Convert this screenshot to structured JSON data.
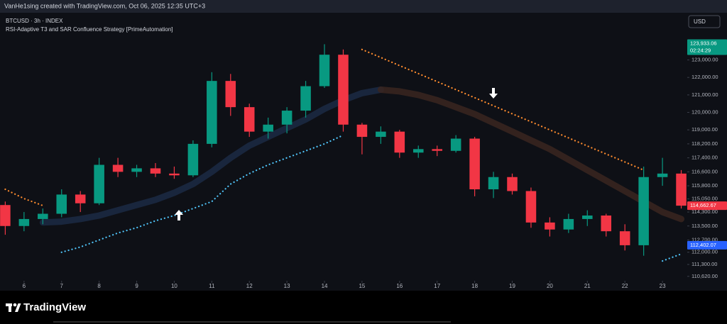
{
  "header": {
    "caption": "VanHe1sing created with TradingView.com, Oct 06, 2025 12:35 UTC+3",
    "currency": "USD"
  },
  "footer": {
    "brand": "TradingView"
  },
  "chart_data": {
    "type": "candlestick",
    "title": "BTCUSD · 3h · INDEX",
    "subtitle": "RSI-Adaptive T3 and SAR Confluence Strategy [PrimeAutomation]",
    "up_color": "#089981",
    "down_color": "#f23645",
    "x": [
      5.5,
      6,
      6.5,
      7,
      7.5,
      8,
      8.5,
      9,
      9.5,
      10,
      10.5,
      11,
      11.5,
      12,
      12.5,
      13,
      13.5,
      14,
      14.5,
      15,
      15.5,
      16,
      16.5,
      17,
      17.5,
      18,
      18.5,
      19,
      19.5,
      20,
      20.5,
      21,
      21.5,
      22,
      22.5,
      23,
      23.5
    ],
    "open": [
      114700,
      113500,
      113900,
      114200,
      115300,
      114800,
      117000,
      116600,
      116800,
      116500,
      116400,
      118200,
      121800,
      120300,
      118900,
      119300,
      120100,
      121500,
      123300,
      119300,
      118600,
      118900,
      117700,
      117900,
      117800,
      118500,
      115600,
      116300,
      115500,
      113700,
      113300,
      113900,
      114100,
      113200,
      112400,
      116300,
      116500
    ],
    "high": [
      114900,
      114300,
      114500,
      115600,
      115500,
      117400,
      117400,
      117000,
      117100,
      116900,
      118400,
      122300,
      122200,
      120500,
      119700,
      120300,
      121800,
      123900,
      123600,
      119400,
      119200,
      119000,
      118100,
      118100,
      118700,
      118600,
      116600,
      116500,
      115700,
      114000,
      114200,
      114400,
      114200,
      113600,
      116900,
      117400,
      116700
    ],
    "low": [
      113000,
      113200,
      113600,
      114000,
      114300,
      114700,
      116300,
      116300,
      116300,
      116200,
      116300,
      118000,
      119800,
      118600,
      118500,
      118800,
      119700,
      121400,
      118900,
      117600,
      118200,
      117400,
      117400,
      117500,
      117700,
      115200,
      115100,
      115300,
      113400,
      112900,
      113100,
      113500,
      112900,
      112100,
      111800,
      115800,
      114500
    ],
    "close": [
      113500,
      113900,
      114200,
      115300,
      114800,
      117000,
      116600,
      116800,
      116500,
      116400,
      118200,
      121800,
      120300,
      118900,
      119300,
      120100,
      121500,
      123300,
      119300,
      118600,
      118900,
      117700,
      117900,
      117800,
      118500,
      115600,
      116300,
      115500,
      113700,
      113300,
      113900,
      114100,
      113200,
      112400,
      116300,
      116500,
      114663
    ],
    "overlays": [
      {
        "style": "band",
        "color": "#1b2a44",
        "values": [
          null,
          null,
          113700,
          113750,
          113900,
          114100,
          114400,
          114700,
          115000,
          115400,
          115900,
          116600,
          117400,
          118100,
          118600,
          119100,
          119600,
          120200,
          120700,
          121100,
          121300,
          null,
          null,
          null,
          null,
          null,
          null,
          null,
          null,
          null,
          null,
          null,
          null,
          null,
          null,
          null,
          null
        ]
      },
      {
        "style": "band",
        "color": "#3a2620",
        "values": [
          null,
          null,
          null,
          null,
          null,
          null,
          null,
          null,
          null,
          null,
          null,
          null,
          null,
          null,
          null,
          null,
          null,
          null,
          null,
          null,
          121300,
          121200,
          121000,
          120700,
          120300,
          119900,
          119400,
          118900,
          118400,
          117900,
          117300,
          116700,
          116100,
          115500,
          114900,
          114300,
          113900
        ]
      },
      {
        "style": "dotted",
        "color": "#ff8c2e",
        "values": [
          115600,
          115070,
          114670,
          null,
          null,
          null,
          null,
          null,
          null,
          null,
          null,
          null,
          null,
          null,
          null,
          null,
          null,
          null,
          null,
          123600,
          123140,
          122680,
          122220,
          121760,
          121300,
          120840,
          120380,
          119920,
          119460,
          119000,
          118540,
          118080,
          117620,
          117160,
          116700,
          null,
          null
        ]
      },
      {
        "style": "dotted",
        "color": "#4fc3f7",
        "values": [
          null,
          null,
          null,
          112000,
          112300,
          112700,
          113100,
          113400,
          113800,
          114100,
          114500,
          114900,
          115900,
          116500,
          117000,
          117400,
          117800,
          118200,
          118700,
          null,
          null,
          null,
          null,
          null,
          null,
          null,
          null,
          null,
          null,
          null,
          null,
          null,
          null,
          null,
          null,
          111500,
          111900
        ]
      }
    ],
    "xlim": [
      5.36,
      23.66
    ],
    "xticks": [
      6,
      7,
      8,
      9,
      10,
      11,
      12,
      13,
      14,
      15,
      16,
      17,
      18,
      19,
      20,
      21,
      22,
      23
    ],
    "ylim": [
      109800,
      125700
    ],
    "yticks": [
      {
        "value": 123000,
        "label": "123,000.00"
      },
      {
        "value": 122000,
        "label": "122,000.00"
      },
      {
        "value": 121000,
        "label": "121,000.00"
      },
      {
        "value": 120000,
        "label": "120,000.00"
      },
      {
        "value": 119000,
        "label": "119,000.00"
      },
      {
        "value": 118200,
        "label": "118,200.00"
      },
      {
        "value": 117400,
        "label": "117,400.00"
      },
      {
        "value": 116600,
        "label": "116,600.00"
      },
      {
        "value": 115800,
        "label": "115,800.00"
      },
      {
        "value": 115050,
        "label": "115,050.00"
      },
      {
        "value": 114300,
        "label": "114,300.00"
      },
      {
        "value": 113500,
        "label": "113,500.00"
      },
      {
        "value": 112700,
        "label": "112,700.00"
      },
      {
        "value": 112000,
        "label": "112,000.00"
      },
      {
        "value": 111300,
        "label": "111,300.00"
      },
      {
        "value": 110620,
        "label": "110,620.00"
      }
    ],
    "price_labels": [
      {
        "value": 123933.06,
        "label": "123,933.06",
        "sub": "02:24:29",
        "color": "#089981"
      },
      {
        "value": 114662.67,
        "label": "114,662.67",
        "color": "#f23645"
      },
      {
        "value": 112402.07,
        "label": "112,402.07",
        "color": "#2962ff"
      }
    ]
  }
}
